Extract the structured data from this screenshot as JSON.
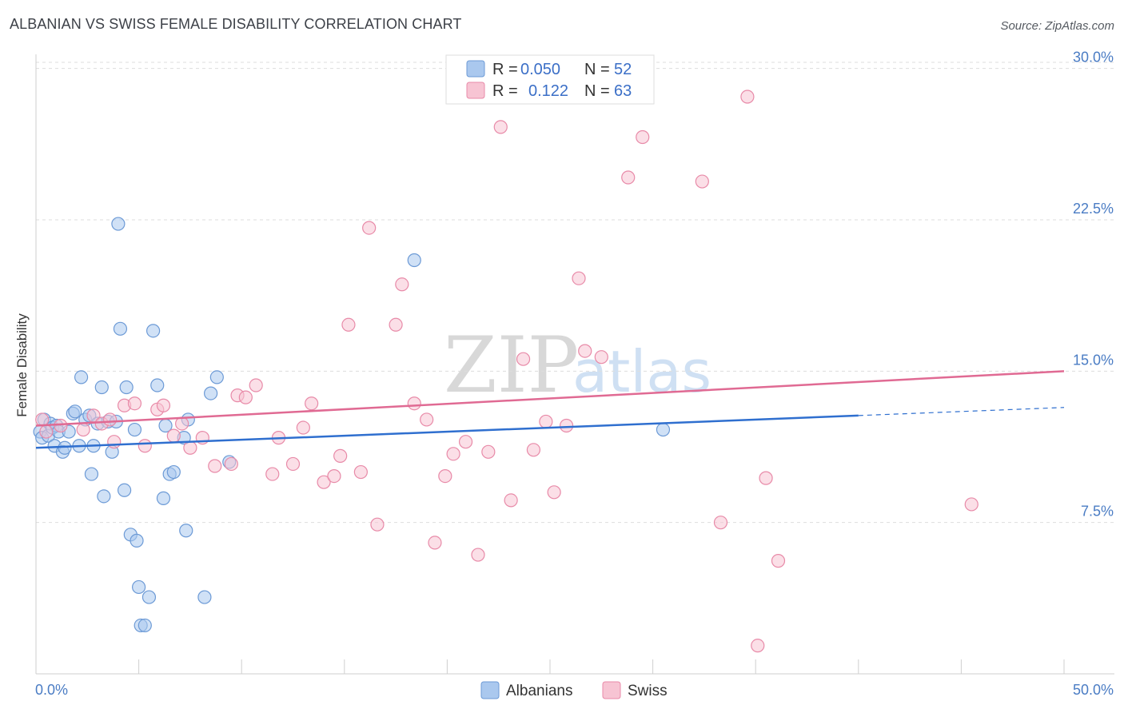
{
  "header": {
    "title": "ALBANIAN VS SWISS FEMALE DISABILITY CORRELATION CHART",
    "source": "Source: ZipAtlas.com"
  },
  "watermark": {
    "zip": "ZIP",
    "atlas": "atlas"
  },
  "legend": {
    "r_label": "R =",
    "n_label": "N =",
    "rows": [
      {
        "series": "Albanians",
        "r": "0.050",
        "n": "52"
      },
      {
        "series": "Swiss",
        "r": "0.122",
        "n": "63"
      }
    ]
  },
  "bottom_legend": [
    "Albanians",
    "Swiss"
  ],
  "colors": {
    "albanians_fill": "#aac8ee",
    "albanians_stroke": "#6c9ad6",
    "albanians_line": "#2f6fcf",
    "swiss_fill": "#f7c4d3",
    "swiss_stroke": "#e88aa8",
    "swiss_line": "#e06a93"
  },
  "chart_data": {
    "type": "scatter",
    "title": "ALBANIAN VS SWISS FEMALE DISABILITY CORRELATION CHART",
    "xlabel": "",
    "ylabel": "Female Disability",
    "xlim": [
      0,
      50
    ],
    "ylim": [
      0,
      30.7
    ],
    "x_tick_labels": [
      "0.0%",
      "50.0%"
    ],
    "y_ticks": [
      7.5,
      15.0,
      22.5,
      30.0
    ],
    "y_tick_labels": [
      "7.5%",
      "15.0%",
      "22.5%",
      "30.0%"
    ],
    "series": [
      {
        "name": "Albanians",
        "trend": {
          "x0": 0,
          "y0": 11.2,
          "x1": 40,
          "y1": 12.8,
          "dashed_to_x": 50,
          "dashed_y": 13.2
        },
        "points": [
          [
            0.2,
            12.0
          ],
          [
            0.3,
            11.7
          ],
          [
            0.4,
            12.6
          ],
          [
            0.6,
            11.8
          ],
          [
            0.7,
            12.4
          ],
          [
            0.8,
            12.2
          ],
          [
            0.9,
            11.3
          ],
          [
            1.0,
            12.3
          ],
          [
            1.1,
            12.0
          ],
          [
            1.3,
            11.0
          ],
          [
            1.4,
            11.2
          ],
          [
            1.6,
            12.0
          ],
          [
            1.8,
            12.9
          ],
          [
            1.9,
            13.0
          ],
          [
            2.1,
            11.3
          ],
          [
            2.2,
            14.7
          ],
          [
            2.4,
            12.6
          ],
          [
            2.6,
            12.8
          ],
          [
            2.7,
            9.9
          ],
          [
            2.8,
            11.3
          ],
          [
            3.0,
            12.4
          ],
          [
            3.2,
            14.2
          ],
          [
            3.3,
            8.8
          ],
          [
            3.5,
            12.5
          ],
          [
            3.7,
            11.0
          ],
          [
            3.9,
            12.5
          ],
          [
            4.0,
            22.3
          ],
          [
            4.1,
            17.1
          ],
          [
            4.3,
            9.1
          ],
          [
            4.4,
            14.2
          ],
          [
            4.6,
            6.9
          ],
          [
            4.8,
            12.1
          ],
          [
            4.9,
            6.6
          ],
          [
            5.0,
            4.3
          ],
          [
            5.1,
            2.4
          ],
          [
            5.3,
            2.4
          ],
          [
            5.5,
            3.8
          ],
          [
            5.7,
            17.0
          ],
          [
            5.9,
            14.3
          ],
          [
            6.2,
            8.7
          ],
          [
            6.3,
            12.3
          ],
          [
            6.5,
            9.9
          ],
          [
            6.7,
            10.0
          ],
          [
            7.2,
            11.7
          ],
          [
            7.3,
            7.1
          ],
          [
            7.4,
            12.6
          ],
          [
            8.2,
            3.8
          ],
          [
            8.5,
            13.9
          ],
          [
            8.8,
            14.7
          ],
          [
            9.4,
            10.5
          ],
          [
            18.4,
            20.5
          ],
          [
            30.5,
            12.1
          ]
        ]
      },
      {
        "name": "Swiss",
        "trend": {
          "x0": 0,
          "y0": 12.3,
          "x1": 50,
          "y1": 15.0
        },
        "points": [
          [
            0.3,
            12.6
          ],
          [
            0.5,
            12.0
          ],
          [
            1.2,
            12.3
          ],
          [
            2.3,
            12.1
          ],
          [
            2.8,
            12.8
          ],
          [
            3.2,
            12.4
          ],
          [
            3.6,
            12.6
          ],
          [
            3.8,
            11.5
          ],
          [
            4.3,
            13.3
          ],
          [
            4.8,
            13.4
          ],
          [
            5.3,
            11.3
          ],
          [
            5.9,
            13.1
          ],
          [
            6.2,
            13.3
          ],
          [
            6.7,
            11.8
          ],
          [
            7.1,
            12.4
          ],
          [
            7.5,
            11.2
          ],
          [
            8.1,
            11.7
          ],
          [
            8.7,
            10.3
          ],
          [
            9.5,
            10.4
          ],
          [
            9.8,
            13.8
          ],
          [
            10.2,
            13.7
          ],
          [
            10.7,
            14.3
          ],
          [
            11.5,
            9.9
          ],
          [
            11.8,
            11.7
          ],
          [
            12.5,
            10.4
          ],
          [
            13.0,
            12.2
          ],
          [
            13.4,
            13.4
          ],
          [
            14.0,
            9.5
          ],
          [
            14.5,
            9.8
          ],
          [
            14.8,
            10.8
          ],
          [
            15.2,
            17.3
          ],
          [
            15.8,
            10.0
          ],
          [
            16.2,
            22.1
          ],
          [
            16.6,
            7.4
          ],
          [
            17.5,
            17.3
          ],
          [
            17.8,
            19.3
          ],
          [
            18.4,
            13.4
          ],
          [
            19.0,
            12.6
          ],
          [
            19.4,
            6.5
          ],
          [
            19.9,
            9.8
          ],
          [
            20.3,
            10.9
          ],
          [
            20.9,
            11.5
          ],
          [
            21.5,
            5.9
          ],
          [
            22.0,
            11.0
          ],
          [
            22.6,
            27.1
          ],
          [
            23.1,
            8.6
          ],
          [
            23.7,
            15.6
          ],
          [
            24.2,
            11.1
          ],
          [
            24.8,
            12.5
          ],
          [
            25.2,
            9.0
          ],
          [
            25.8,
            12.3
          ],
          [
            26.4,
            19.6
          ],
          [
            26.7,
            16.0
          ],
          [
            27.5,
            15.7
          ],
          [
            28.8,
            24.6
          ],
          [
            29.5,
            26.6
          ],
          [
            32.4,
            24.4
          ],
          [
            33.3,
            7.5
          ],
          [
            34.6,
            28.6
          ],
          [
            35.1,
            1.4
          ],
          [
            35.5,
            9.7
          ],
          [
            36.1,
            5.6
          ],
          [
            45.5,
            8.4
          ]
        ]
      }
    ]
  }
}
